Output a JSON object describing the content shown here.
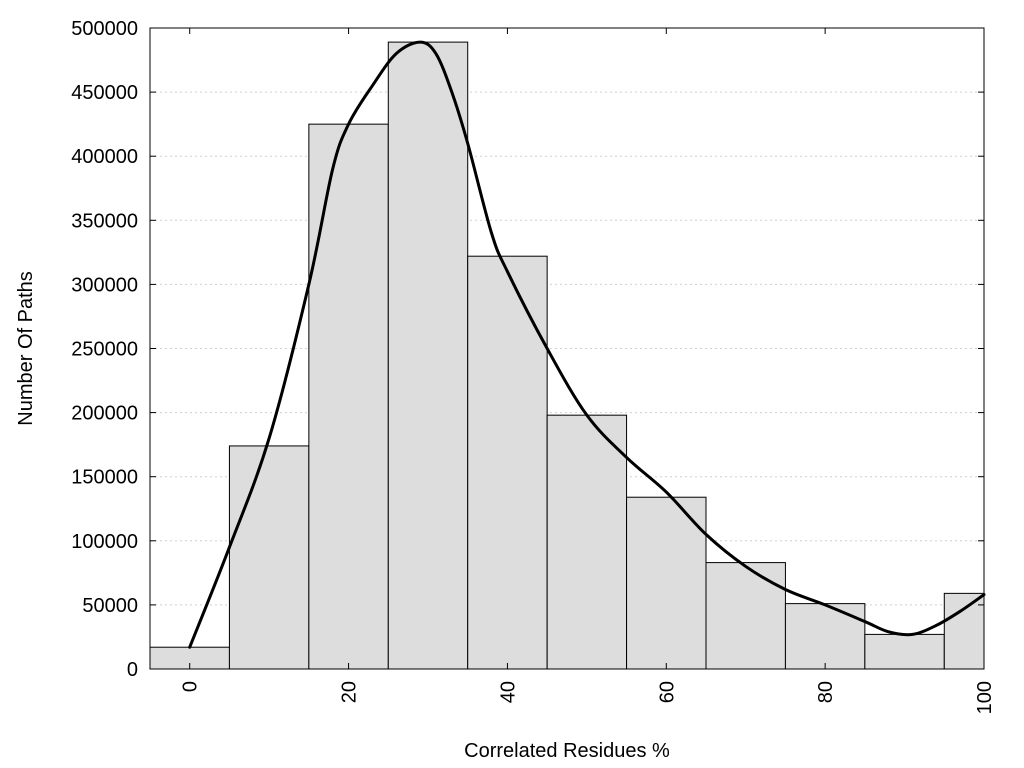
{
  "chart_data": {
    "type": "bar",
    "title": "",
    "xlabel": "Correlated Residues %",
    "ylabel": "Number Of Paths",
    "xlim": [
      -5,
      100
    ],
    "ylim": [
      0,
      500000
    ],
    "x_ticks": [
      "0",
      "20",
      "40",
      "60",
      "80",
      "100"
    ],
    "x_tick_values": [
      0,
      20,
      40,
      60,
      80,
      100
    ],
    "y_ticks": [
      "0",
      "50000",
      "100000",
      "150000",
      "200000",
      "250000",
      "300000",
      "350000",
      "400000",
      "450000",
      "500000"
    ],
    "y_tick_values": [
      0,
      50000,
      100000,
      150000,
      200000,
      250000,
      300000,
      350000,
      400000,
      450000,
      500000
    ],
    "grid": "horizontal dotted",
    "bar_color": "#dddddd",
    "bins": [
      {
        "center": 0,
        "value": 17000
      },
      {
        "center": 10,
        "value": 174000
      },
      {
        "center": 20,
        "value": 425000
      },
      {
        "center": 30,
        "value": 489000
      },
      {
        "center": 40,
        "value": 322000
      },
      {
        "center": 50,
        "value": 198000
      },
      {
        "center": 60,
        "value": 134000
      },
      {
        "center": 70,
        "value": 83000
      },
      {
        "center": 80,
        "value": 51000
      },
      {
        "center": 90,
        "value": 27000
      },
      {
        "center": 100,
        "value": 59000
      }
    ],
    "bin_width": 10,
    "curve": [
      [
        0,
        17000
      ],
      [
        5,
        95000
      ],
      [
        10,
        180000
      ],
      [
        15,
        300000
      ],
      [
        18,
        390000
      ],
      [
        20,
        425000
      ],
      [
        23,
        455000
      ],
      [
        26,
        480000
      ],
      [
        29,
        489000
      ],
      [
        31,
        480000
      ],
      [
        33,
        450000
      ],
      [
        35,
        410000
      ],
      [
        38,
        340000
      ],
      [
        40,
        310000
      ],
      [
        45,
        250000
      ],
      [
        50,
        198000
      ],
      [
        55,
        165000
      ],
      [
        60,
        138000
      ],
      [
        65,
        105000
      ],
      [
        70,
        80000
      ],
      [
        75,
        62000
      ],
      [
        80,
        50000
      ],
      [
        85,
        37000
      ],
      [
        88,
        29000
      ],
      [
        91,
        27000
      ],
      [
        94,
        34000
      ],
      [
        97,
        45000
      ],
      [
        100,
        58000
      ]
    ]
  }
}
